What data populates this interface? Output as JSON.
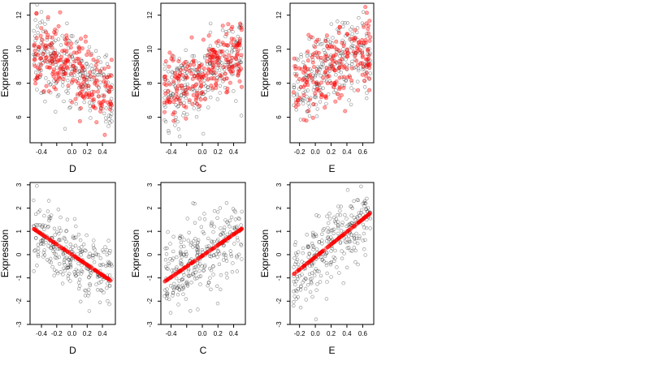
{
  "colors": {
    "observed": "#000000",
    "fitted": "#ff0000"
  },
  "chart_data": [
    {
      "type": "scatter",
      "xlabel": "D",
      "ylabel": "Expression",
      "xlim": [
        -0.55,
        0.57
      ],
      "ylim": [
        4.5,
        12.7
      ],
      "xticks": [
        -0.4,
        -0.2,
        0.0,
        0.2,
        0.4
      ],
      "xtick_labels": [
        "-0.4",
        "",
        "0.0",
        "0.2",
        "0.4"
      ],
      "yticks": [
        6,
        8,
        10,
        12
      ],
      "ytick_labels": [
        "6",
        "8",
        "10",
        "12"
      ],
      "series": [
        {
          "role": "observed",
          "slope": -2.5,
          "intercept": 8.8,
          "noise": 1.1,
          "n": 260
        },
        {
          "role": "fitted",
          "slope": -2.5,
          "intercept": 8.8,
          "noise": 1.0,
          "n": 220
        }
      ]
    },
    {
      "type": "scatter",
      "xlabel": "C",
      "ylabel": "Expression",
      "xlim": [
        -0.53,
        0.55
      ],
      "ylim": [
        4.5,
        12.7
      ],
      "xticks": [
        -0.4,
        -0.2,
        0.0,
        0.2,
        0.4
      ],
      "xtick_labels": [
        "-0.4",
        "",
        "0.0",
        "0.2",
        "0.4"
      ],
      "yticks": [
        6,
        8,
        10,
        12
      ],
      "ytick_labels": [
        "6",
        "8",
        "10",
        "12"
      ],
      "series": [
        {
          "role": "observed",
          "slope": 2.8,
          "intercept": 8.6,
          "noise": 1.1,
          "n": 260
        },
        {
          "role": "fitted",
          "slope": 2.8,
          "intercept": 8.6,
          "noise": 1.0,
          "n": 220
        }
      ]
    },
    {
      "type": "scatter",
      "xlabel": "E",
      "ylabel": "Expression",
      "xlim": [
        -0.32,
        0.74
      ],
      "ylim": [
        4.5,
        12.7
      ],
      "xticks": [
        -0.2,
        0.0,
        0.2,
        0.4,
        0.6
      ],
      "xtick_labels": [
        "-0.2",
        "0.0",
        "0.2",
        "0.4",
        "0.6"
      ],
      "yticks": [
        6,
        8,
        10,
        12
      ],
      "ytick_labels": [
        "6",
        "8",
        "10",
        "12"
      ],
      "series": [
        {
          "role": "observed",
          "slope": 2.2,
          "intercept": 8.5,
          "noise": 1.2,
          "n": 260
        },
        {
          "role": "fitted",
          "slope": 2.2,
          "intercept": 8.5,
          "noise": 1.1,
          "n": 200
        }
      ]
    },
    {
      "type": "scatter",
      "xlabel": "D",
      "ylabel": "Expression",
      "xlim": [
        -0.55,
        0.57
      ],
      "ylim": [
        -3.0,
        3.1
      ],
      "xticks": [
        -0.4,
        -0.2,
        0.0,
        0.2,
        0.4
      ],
      "xtick_labels": [
        "-0.4",
        "-0.2",
        "0.0",
        "0.2",
        "0.4"
      ],
      "yticks": [
        -3,
        -2,
        -1,
        0,
        1,
        2,
        3
      ],
      "ytick_labels": [
        "-3",
        "-2",
        "-1",
        "0",
        "1",
        "2",
        "3"
      ],
      "series": [
        {
          "role": "observed",
          "slope": -2.2,
          "intercept": 0.0,
          "noise": 0.75,
          "n": 280
        },
        {
          "role": "fitted",
          "slope": -2.2,
          "intercept": 0.0,
          "noise": 0.0,
          "n": 140
        }
      ]
    },
    {
      "type": "scatter",
      "xlabel": "C",
      "ylabel": "Expression",
      "xlim": [
        -0.53,
        0.55
      ],
      "ylim": [
        -3.0,
        3.1
      ],
      "xticks": [
        -0.4,
        -0.2,
        0.0,
        0.2,
        0.4
      ],
      "xtick_labels": [
        "-0.4",
        "",
        "0.0",
        "0.2",
        "0.4"
      ],
      "yticks": [
        -3,
        -2,
        -1,
        0,
        1,
        2,
        3
      ],
      "ytick_labels": [
        "-3",
        "-2",
        "-1",
        "0",
        "1",
        "2",
        "3"
      ],
      "series": [
        {
          "role": "observed",
          "slope": 2.3,
          "intercept": -0.05,
          "noise": 0.75,
          "n": 280
        },
        {
          "role": "fitted",
          "slope": 2.3,
          "intercept": -0.05,
          "noise": 0.0,
          "n": 140
        }
      ]
    },
    {
      "type": "scatter",
      "xlabel": "E",
      "ylabel": "Expression",
      "xlim": [
        -0.32,
        0.74
      ],
      "ylim": [
        -3.0,
        3.1
      ],
      "xticks": [
        -0.2,
        0.0,
        0.2,
        0.4,
        0.6
      ],
      "xtick_labels": [
        "-0.2",
        "0.0",
        "0.2",
        "0.4",
        "0.6"
      ],
      "yticks": [
        -3,
        -2,
        -1,
        0,
        1,
        2,
        3
      ],
      "ytick_labels": [
        "-3",
        "-2",
        "-1",
        "0",
        "1",
        "2",
        "3"
      ],
      "series": [
        {
          "role": "observed",
          "slope": 2.7,
          "intercept": -0.1,
          "noise": 0.75,
          "n": 280
        },
        {
          "role": "fitted",
          "slope": 2.7,
          "intercept": -0.1,
          "noise": 0.0,
          "n": 140
        }
      ]
    }
  ]
}
